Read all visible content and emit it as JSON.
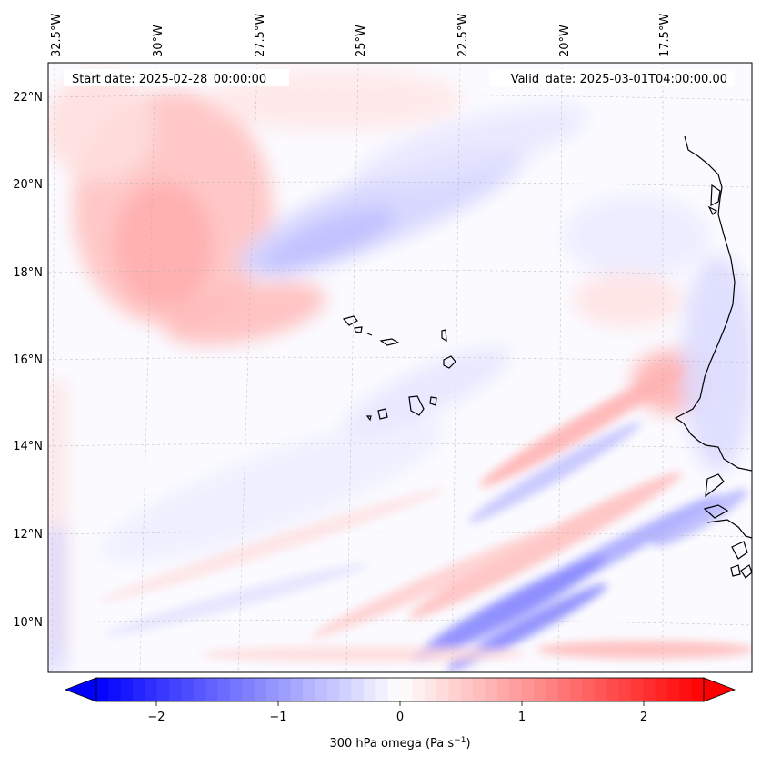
{
  "map": {
    "start_label": "Start date: 2025-02-28_00:00:00",
    "valid_label": "Valid_date: 2025-03-01T04:00:00.00",
    "lon_labels": [
      "32.5°W",
      "30°W",
      "27.5°W",
      "25°W",
      "22.5°W",
      "20°W",
      "17.5°W"
    ],
    "lat_labels": [
      "22°N",
      "20°N",
      "18°N",
      "16°N",
      "14°N",
      "12°N",
      "10°N"
    ],
    "field": "300 hPa omega",
    "colormap": "bwr",
    "colors": {
      "negative": "#0000ff",
      "zero": "#ffffff",
      "positive": "#ff0000",
      "coast": "#000000"
    }
  },
  "colorbar": {
    "ticks": [
      "−2",
      "−1",
      "0",
      "1",
      "2"
    ],
    "tick_values": [
      -2,
      -1,
      0,
      1,
      2
    ],
    "range": [
      -2.5,
      2.5
    ],
    "label_main": "300 hPa omega (Pa s",
    "label_exp": "−1",
    "label_tail": ")"
  }
}
